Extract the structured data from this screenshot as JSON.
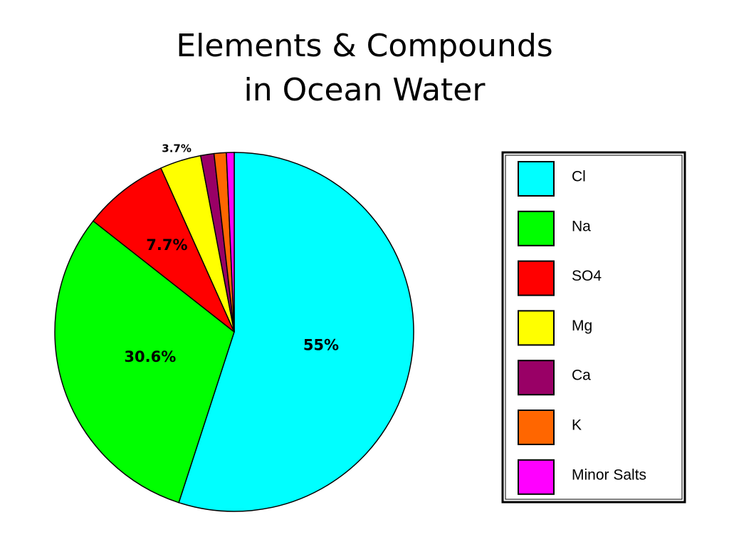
{
  "chart_data": {
    "type": "pie",
    "title": "Elements & Compounds\nin Ocean Water",
    "categories": [
      "Cl",
      "Na",
      "SO4",
      "Mg",
      "Ca",
      "K",
      "Minor Salts"
    ],
    "values": [
      55,
      30.6,
      7.7,
      3.7,
      1.2,
      1.1,
      0.7
    ],
    "value_labels": [
      "55%",
      "30.6%",
      "7.7%",
      "3.7%",
      null,
      null,
      null
    ],
    "colors": [
      "#00ffff",
      "#00ff00",
      "#ff0000",
      "#ffff00",
      "#990066",
      "#ff6600",
      "#ff00ff"
    ],
    "legend": "right"
  }
}
